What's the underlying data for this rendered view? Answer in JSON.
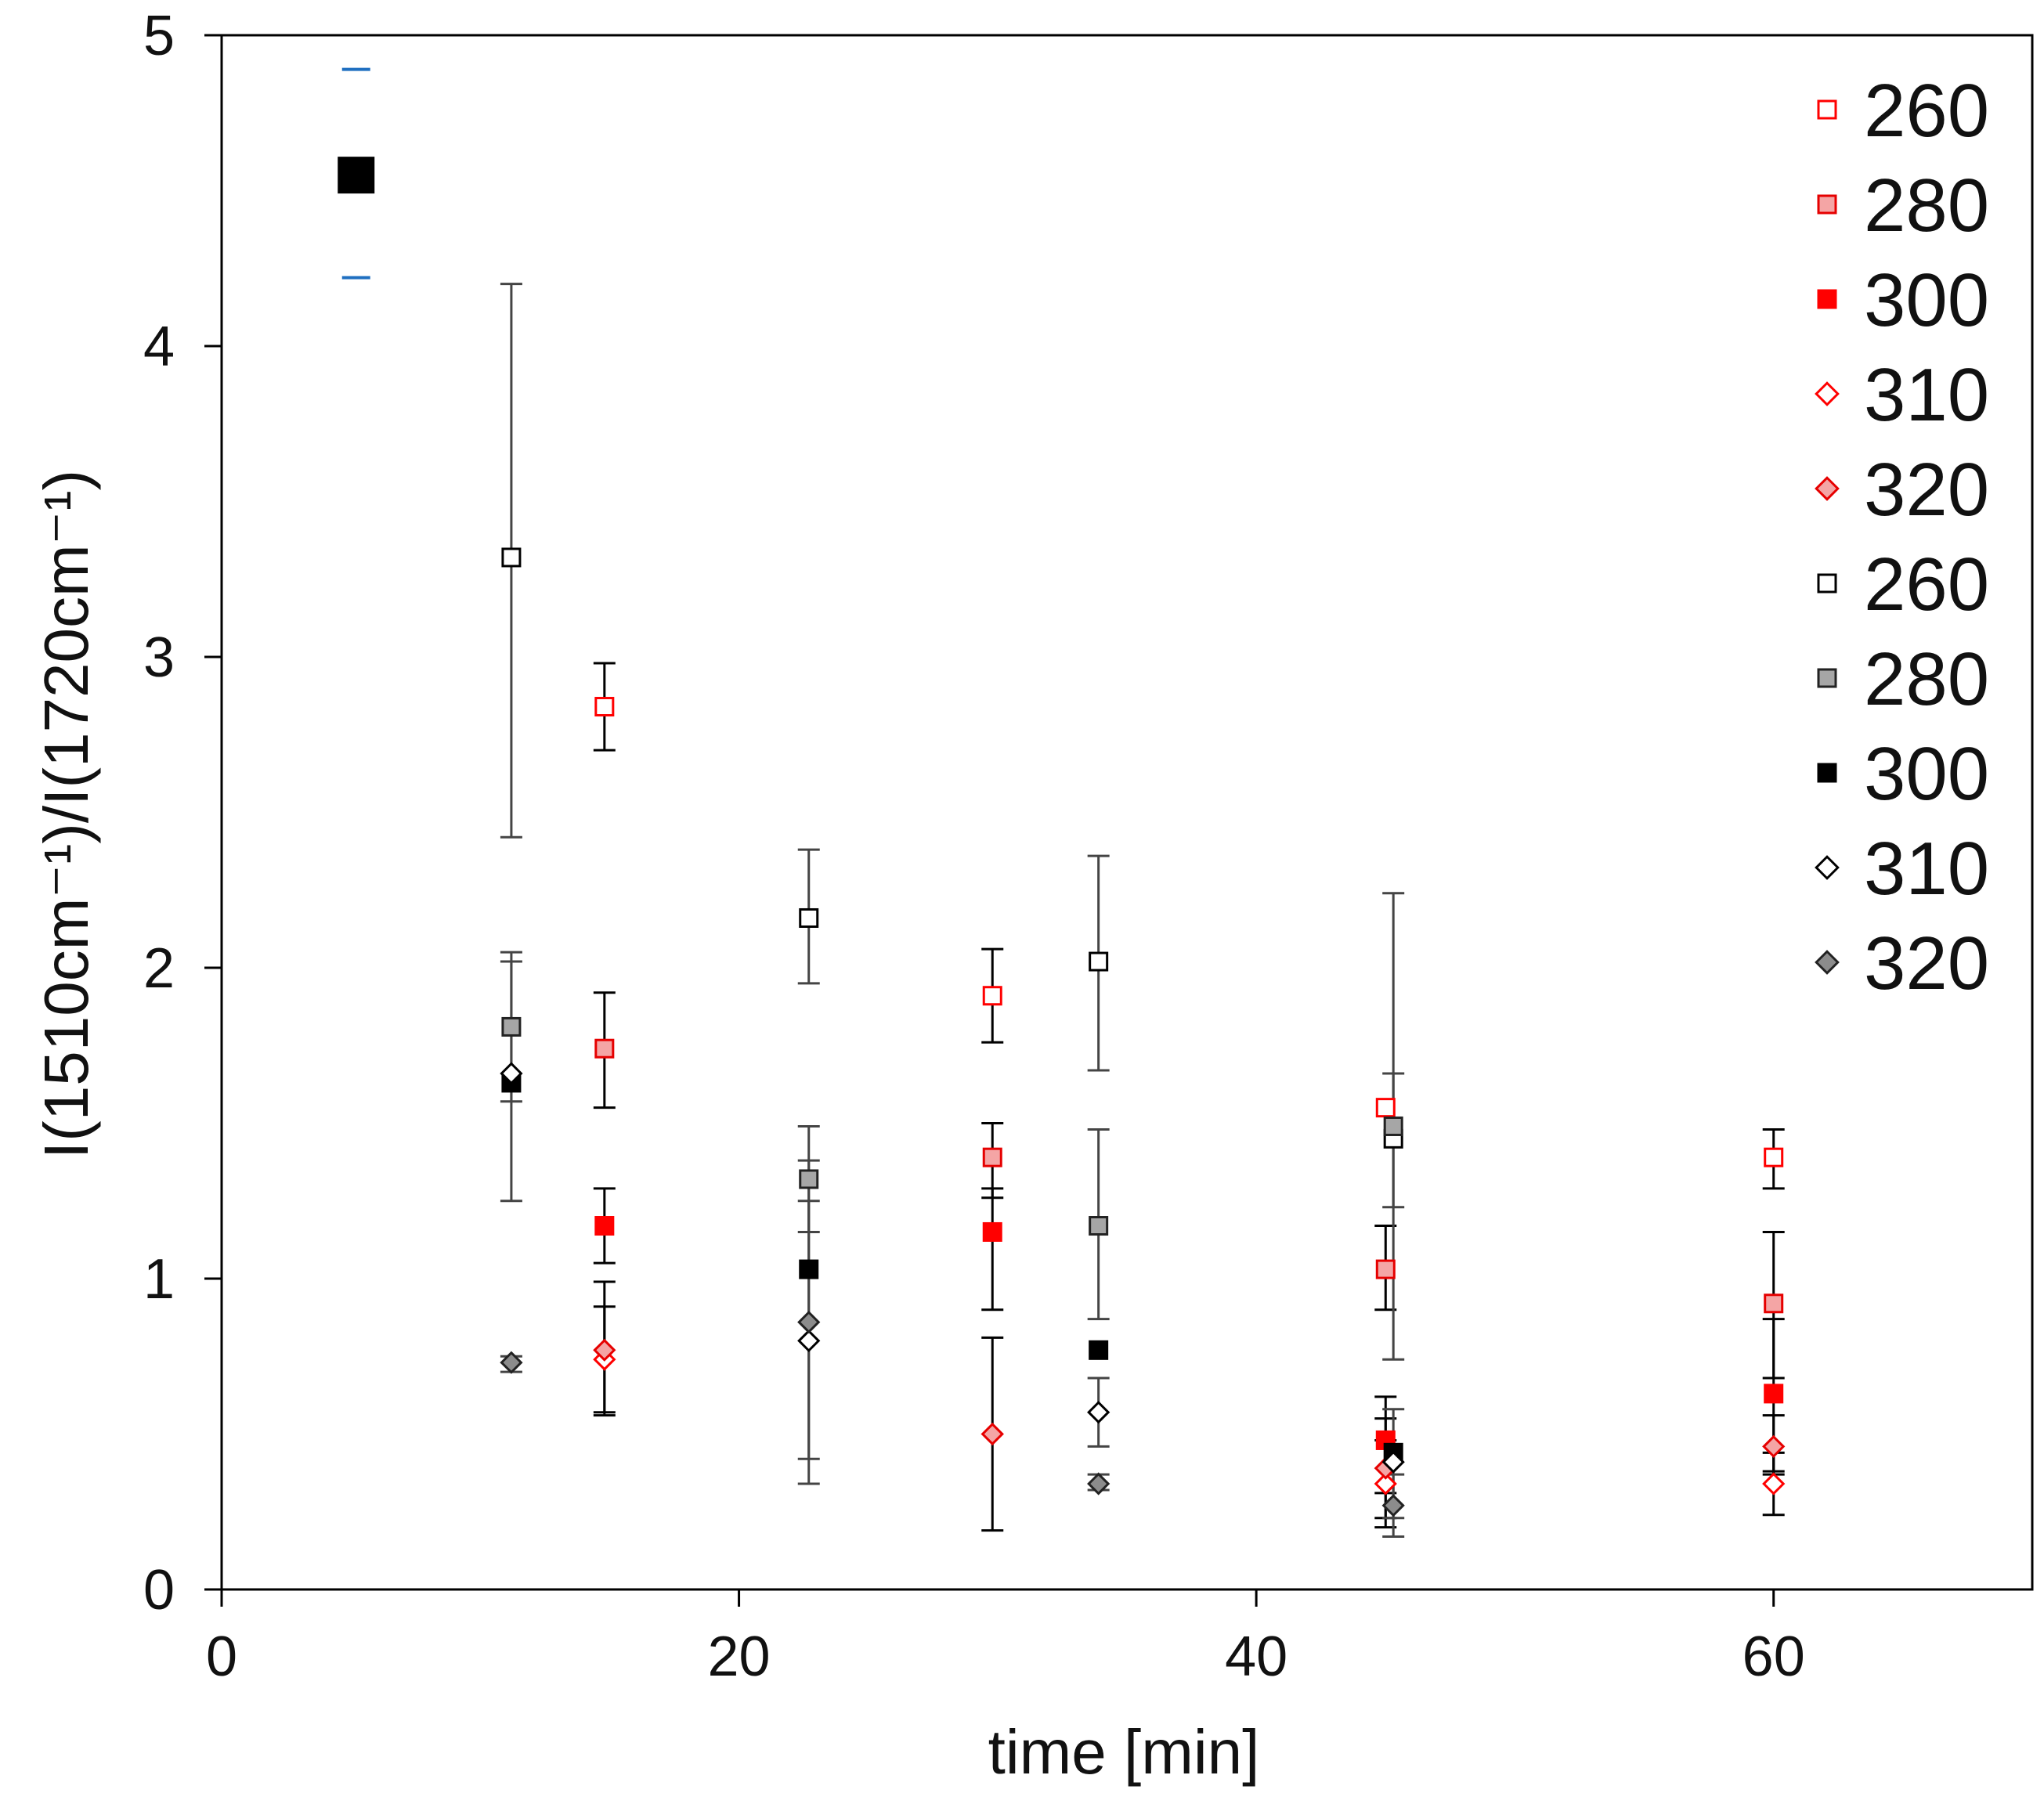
{
  "chart_data": {
    "type": "scatter",
    "title": "",
    "xlabel": "time [min]",
    "ylabel": "I(1510cm⁻¹)/I(1720cm⁻¹)",
    "xlim": [
      0,
      70
    ],
    "ylim": [
      0,
      5
    ],
    "xticks": [
      0,
      20,
      40,
      60
    ],
    "xtick_labels": [
      "0",
      "20",
      "40",
      "60"
    ],
    "yticks": [
      0,
      1,
      2,
      3,
      4,
      5
    ],
    "ytick_labels": [
      "0",
      "1",
      "2",
      "3",
      "4",
      "5"
    ],
    "grid": false,
    "legend_position": "top-right",
    "reference_point": {
      "x": 5.2,
      "y": 4.55,
      "err_low": 4.22,
      "err_high": 4.89,
      "color": "#000000",
      "bar_color": "#1f6fc0"
    },
    "series": [
      {
        "name": "260",
        "marker": "square",
        "fill": "none",
        "stroke": "#ff0000",
        "points": [
          {
            "x": 14.8,
            "y": 2.84,
            "lo": 2.7,
            "hi": 2.98
          },
          {
            "x": 29.8,
            "y": 1.91,
            "lo": 1.76,
            "hi": 2.06
          },
          {
            "x": 45.0,
            "y": 1.55
          },
          {
            "x": 60.0,
            "y": 1.39,
            "lo": 1.29,
            "hi": 1.48
          }
        ]
      },
      {
        "name": "280",
        "marker": "square",
        "fill": "#f4a5a5",
        "stroke": "#e60000",
        "points": [
          {
            "x": 14.8,
            "y": 1.74,
            "lo": 1.55,
            "hi": 1.92
          },
          {
            "x": 29.8,
            "y": 1.39,
            "lo": 1.26,
            "hi": 1.5
          },
          {
            "x": 45.0,
            "y": 1.03,
            "lo": 0.9,
            "hi": 1.17
          },
          {
            "x": 60.0,
            "y": 0.92,
            "lo": 0.68,
            "hi": 1.15
          }
        ]
      },
      {
        "name": "300",
        "marker": "square",
        "fill": "#ff0000",
        "stroke": "#ff0000",
        "points": [
          {
            "x": 14.8,
            "y": 1.17,
            "lo": 1.05,
            "hi": 1.29
          },
          {
            "x": 29.8,
            "y": 1.15,
            "lo": 0.9,
            "hi": 1.29
          },
          {
            "x": 45.0,
            "y": 0.48,
            "lo": 0.31,
            "hi": 0.62
          },
          {
            "x": 60.0,
            "y": 0.63,
            "lo": 0.38,
            "hi": 0.87
          }
        ]
      },
      {
        "name": "310",
        "marker": "diamond",
        "fill": "none",
        "stroke": "#ff0000",
        "points": [
          {
            "x": 14.8,
            "y": 0.74,
            "lo": 0.57,
            "hi": 0.91
          },
          {
            "x": 29.8,
            "y": 0.5
          },
          {
            "x": 45.0,
            "y": 0.34,
            "lo": 0.2,
            "hi": 0.48
          },
          {
            "x": 60.0,
            "y": 0.34,
            "lo": 0.24,
            "hi": 0.44
          }
        ]
      },
      {
        "name": "320",
        "marker": "diamond",
        "fill": "#f4a5a5",
        "stroke": "#e60000",
        "points": [
          {
            "x": 14.8,
            "y": 0.77,
            "lo": 0.56,
            "hi": 0.99
          },
          {
            "x": 29.8,
            "y": 0.5,
            "lo": 0.19,
            "hi": 0.81
          },
          {
            "x": 45.0,
            "y": 0.39,
            "lo": 0.23,
            "hi": 0.55
          },
          {
            "x": 60.0,
            "y": 0.46,
            "lo": 0.37,
            "hi": 0.56
          }
        ]
      },
      {
        "name": "260",
        "marker": "square",
        "fill": "none",
        "stroke": "#000000",
        "points": [
          {
            "x": 11.2,
            "y": 3.32,
            "lo": 2.42,
            "hi": 4.2
          },
          {
            "x": 22.7,
            "y": 2.16,
            "lo": 1.95,
            "hi": 2.38
          },
          {
            "x": 33.9,
            "y": 2.02,
            "lo": 1.67,
            "hi": 2.36
          },
          {
            "x": 45.3,
            "y": 1.45,
            "lo": 0.74,
            "hi": 2.24
          }
        ]
      },
      {
        "name": "280",
        "marker": "square",
        "fill": "#a6a6a6",
        "stroke": "#222222",
        "points": [
          {
            "x": 11.2,
            "y": 1.81,
            "lo": 1.57,
            "hi": 2.05
          },
          {
            "x": 22.7,
            "y": 1.32,
            "lo": 1.15,
            "hi": 1.49
          },
          {
            "x": 33.9,
            "y": 1.17,
            "lo": 0.87,
            "hi": 1.48
          },
          {
            "x": 45.3,
            "y": 1.49,
            "lo": 1.23,
            "hi": 1.66
          }
        ]
      },
      {
        "name": "300",
        "marker": "square",
        "fill": "#000000",
        "stroke": "#000000",
        "points": [
          {
            "x": 11.2,
            "y": 1.63
          },
          {
            "x": 22.7,
            "y": 1.03
          },
          {
            "x": 33.9,
            "y": 0.77
          },
          {
            "x": 45.3,
            "y": 0.44
          }
        ]
      },
      {
        "name": "310",
        "marker": "diamond",
        "fill": "none",
        "stroke": "#000000",
        "points": [
          {
            "x": 11.2,
            "y": 1.66,
            "lo": 1.25,
            "hi": 2.02
          },
          {
            "x": 22.7,
            "y": 0.8,
            "lo": 0.34,
            "hi": 1.25
          },
          {
            "x": 33.9,
            "y": 0.57,
            "lo": 0.46,
            "hi": 0.68
          },
          {
            "x": 45.3,
            "y": 0.41,
            "lo": 0.23,
            "hi": 0.58
          }
        ]
      },
      {
        "name": "320",
        "marker": "diamond",
        "fill": "#8c8c8c",
        "stroke": "#222222",
        "points": [
          {
            "x": 11.2,
            "y": 0.73,
            "lo": 0.7,
            "hi": 0.75
          },
          {
            "x": 22.7,
            "y": 0.86,
            "lo": 0.42,
            "hi": 1.38
          },
          {
            "x": 33.9,
            "y": 0.34,
            "lo": 0.32,
            "hi": 0.37
          },
          {
            "x": 45.3,
            "y": 0.27,
            "lo": 0.17,
            "hi": 0.37
          }
        ]
      }
    ]
  }
}
